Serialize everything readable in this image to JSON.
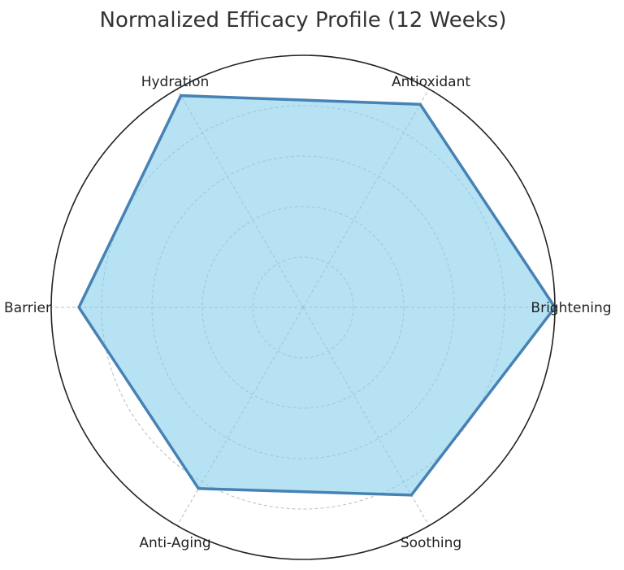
{
  "chart_data": {
    "type": "radar",
    "title": "Normalized Efficacy Profile (12 Weeks)",
    "categories": [
      "Brightening",
      "Antioxidant",
      "Hydration",
      "Barrier",
      "Anti-Aging",
      "Soothing"
    ],
    "values": [
      1.0,
      0.93,
      0.97,
      0.89,
      0.83,
      0.86
    ],
    "rlim": [
      0,
      1.0
    ],
    "rgrid": [
      0.2,
      0.4,
      0.6,
      0.8
    ],
    "grid": true,
    "tick_labels_visible": false,
    "colors": {
      "fill": "#87CEEB",
      "stroke": "#4682B4",
      "frame": "#222222",
      "grid": "#bbbbbb"
    }
  }
}
